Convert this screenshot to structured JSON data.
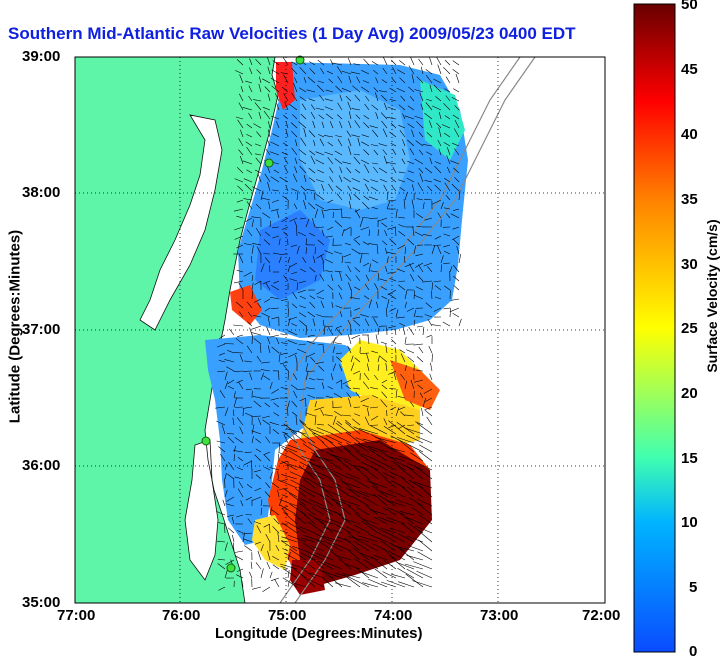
{
  "title": "Southern Mid-Atlantic Raw Velocities (1 Day Avg) 2009/05/23 0400 EDT",
  "map": {
    "xlabel": "Longitude (Degrees:Minutes)",
    "ylabel": "Latitude (Degrees:Minutes)",
    "x_ticks": [
      "77:00",
      "76:00",
      "75:00",
      "74:00",
      "73:00",
      "72:00"
    ],
    "y_ticks": [
      "39:00",
      "38:00",
      "37:00",
      "36:00",
      "35:00"
    ],
    "lon_range": [
      -77,
      -72
    ],
    "lat_range": [
      35,
      39
    ],
    "grid": true,
    "land_color": "#5ef5a8",
    "water_color": "#ffffff"
  },
  "colorbar": {
    "label": "Surface Velocity (cm/s)",
    "ticks": [
      "50",
      "45",
      "40",
      "35",
      "30",
      "25",
      "20",
      "15",
      "10",
      "5",
      "0"
    ],
    "range": [
      0,
      50
    ],
    "colors": [
      "#0a4cff",
      "#00c8ff",
      "#40ffb0",
      "#ffff00",
      "#ff8000",
      "#ff0000",
      "#7a0000"
    ]
  }
}
